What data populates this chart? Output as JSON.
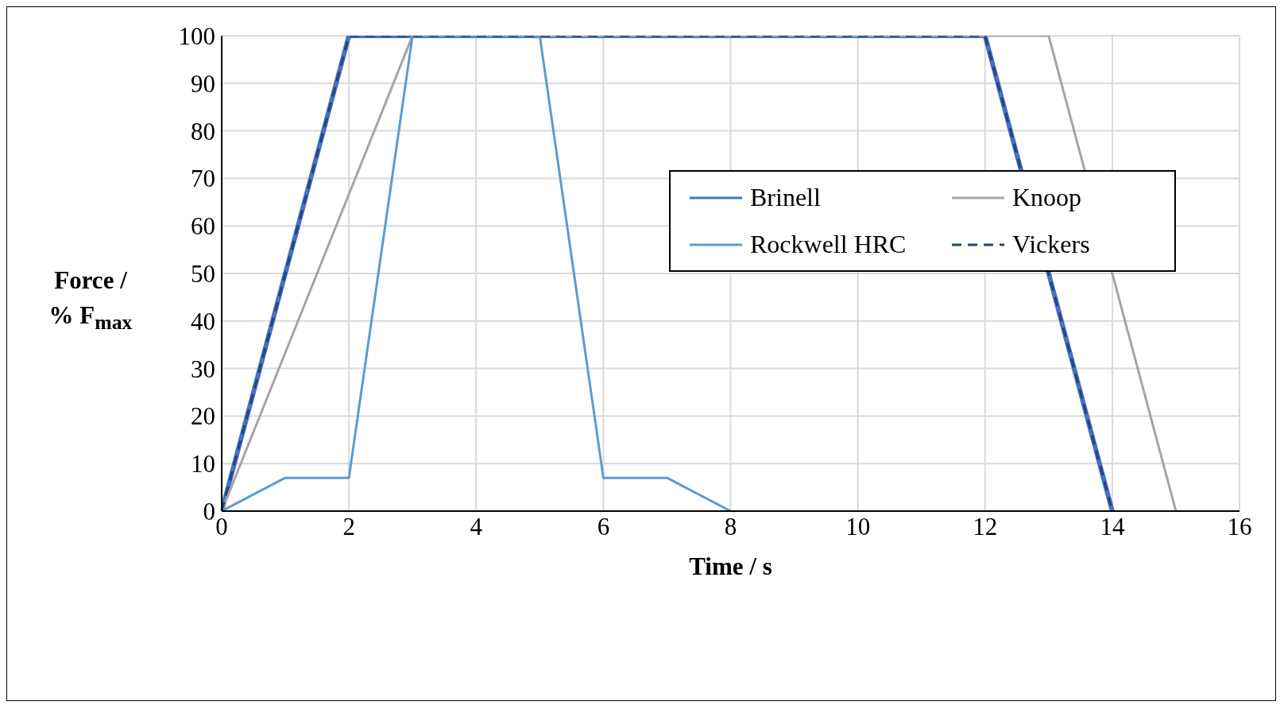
{
  "chart_data": {
    "type": "line",
    "xlabel": "Time / s",
    "ylabel": "Force / % F$_{max}$",
    "xlim": [
      0,
      16
    ],
    "xticks": [
      0,
      2,
      4,
      6,
      8,
      10,
      12,
      14,
      16
    ],
    "ylim": [
      0,
      100
    ],
    "yticks": [
      0,
      10,
      20,
      30,
      40,
      50,
      60,
      70,
      80,
      90,
      100
    ],
    "grid": true,
    "legend": "top right",
    "marker": "none",
    "series": [
      {
        "name": "Brinell",
        "color": "#4472c4",
        "line_style": "solid",
        "x": [
          0,
          2,
          12,
          14
        ],
        "values": [
          0,
          100,
          100,
          0
        ]
      },
      {
        "name": "Knoop",
        "color": "#a5a5a5",
        "line_style": "solid",
        "x": [
          0,
          3,
          13,
          15
        ],
        "values": [
          0,
          100,
          100,
          0
        ]
      },
      {
        "name": "Rockwell HRC",
        "color": "#5b9bd5",
        "line_style": "solid",
        "x": [
          0,
          1,
          2,
          3,
          5,
          6,
          7,
          8
        ],
        "values": [
          0,
          7,
          7,
          100,
          100,
          7,
          7,
          0
        ]
      },
      {
        "name": "Vickers",
        "color": "#264478",
        "line_style": "dashed",
        "x": [
          0,
          2,
          12,
          14
        ],
        "values": [
          0,
          100,
          100,
          0
        ]
      }
    ]
  }
}
